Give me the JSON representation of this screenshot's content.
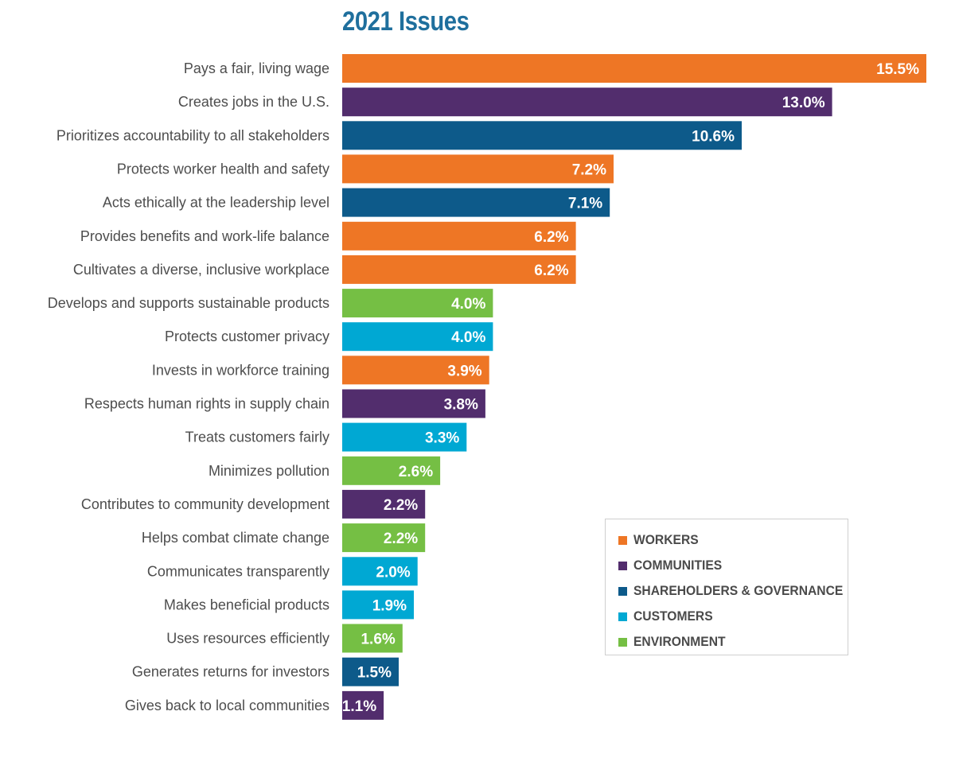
{
  "chart_data": {
    "type": "bar",
    "orientation": "horizontal",
    "title": "2021 Issues",
    "xlabel": "",
    "ylabel": "",
    "xlim": [
      0,
      15.5
    ],
    "grid": false,
    "value_suffix": "%",
    "categories": [
      "Pays a fair, living wage",
      "Creates jobs in the U.S.",
      "Prioritizes accountability to all stakeholders",
      "Protects worker health and safety",
      "Acts ethically at the leadership level",
      "Provides benefits and work-life balance",
      "Cultivates a diverse, inclusive workplace",
      "Develops and supports sustainable products",
      "Protects customer privacy",
      "Invests in workforce training",
      "Respects human rights in supply chain",
      "Treats customers fairly",
      "Minimizes pollution",
      "Contributes to community development",
      "Helps combat climate change",
      "Communicates transparently",
      "Makes beneficial products",
      "Uses resources efficiently",
      "Generates returns for investors",
      "Gives back to local communities"
    ],
    "values": [
      15.5,
      13.0,
      10.6,
      7.2,
      7.1,
      6.2,
      6.2,
      4.0,
      4.0,
      3.9,
      3.8,
      3.3,
      2.6,
      2.2,
      2.2,
      2.0,
      1.9,
      1.6,
      1.5,
      1.1
    ],
    "value_labels": [
      "15.5%",
      "13.0%",
      "10.6%",
      "7.2%",
      "7.1%",
      "6.2%",
      "6.2%",
      "4.0%",
      "4.0%",
      "3.9%",
      "3.8%",
      "3.3%",
      "2.6%",
      "2.2%",
      "2.2%",
      "2.0%",
      "1.9%",
      "1.6%",
      "1.5%",
      "1.1%"
    ],
    "groups": [
      "workers",
      "communities",
      "shareholders",
      "workers",
      "shareholders",
      "workers",
      "workers",
      "environment",
      "customers",
      "workers",
      "communities",
      "customers",
      "environment",
      "communities",
      "environment",
      "customers",
      "customers",
      "environment",
      "shareholders",
      "communities"
    ],
    "legend": {
      "placement": "bottom-right",
      "entries": [
        {
          "key": "workers",
          "label": "WORKERS",
          "color": "#ee7625"
        },
        {
          "key": "communities",
          "label": "COMMUNITIES",
          "color": "#522d6d"
        },
        {
          "key": "shareholders",
          "label": "SHAREHOLDERS & GOVERNANCE",
          "color": "#0d5a8a"
        },
        {
          "key": "customers",
          "label": "CUSTOMERS",
          "color": "#00a8d3"
        },
        {
          "key": "environment",
          "label": "ENVIRONMENT",
          "color": "#75bf44"
        }
      ]
    }
  }
}
